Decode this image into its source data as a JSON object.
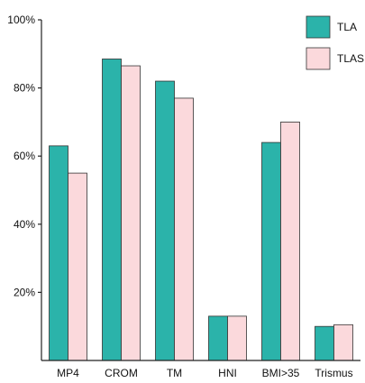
{
  "chart_data": {
    "type": "bar",
    "title": "",
    "xlabel": "",
    "ylabel": "",
    "ylim": [
      0,
      100
    ],
    "yticks": [
      20,
      40,
      60,
      80,
      100
    ],
    "ytick_labels": [
      "20%",
      "40%",
      "60%",
      "80%",
      "100%"
    ],
    "categories": [
      "MP4",
      "CROM",
      "TM",
      "HNI",
      "BMI>35",
      "Trismus"
    ],
    "series": [
      {
        "name": "TLA",
        "color": "#2bb3aa",
        "values": [
          63,
          88.5,
          82,
          13,
          64,
          10
        ]
      },
      {
        "name": "TLAS",
        "color": "#fbd9dc",
        "values": [
          55,
          86.5,
          77,
          13,
          70,
          10.5
        ]
      }
    ],
    "legend_position": "top-right",
    "grid": false,
    "bar_edge_color": "#333333"
  }
}
